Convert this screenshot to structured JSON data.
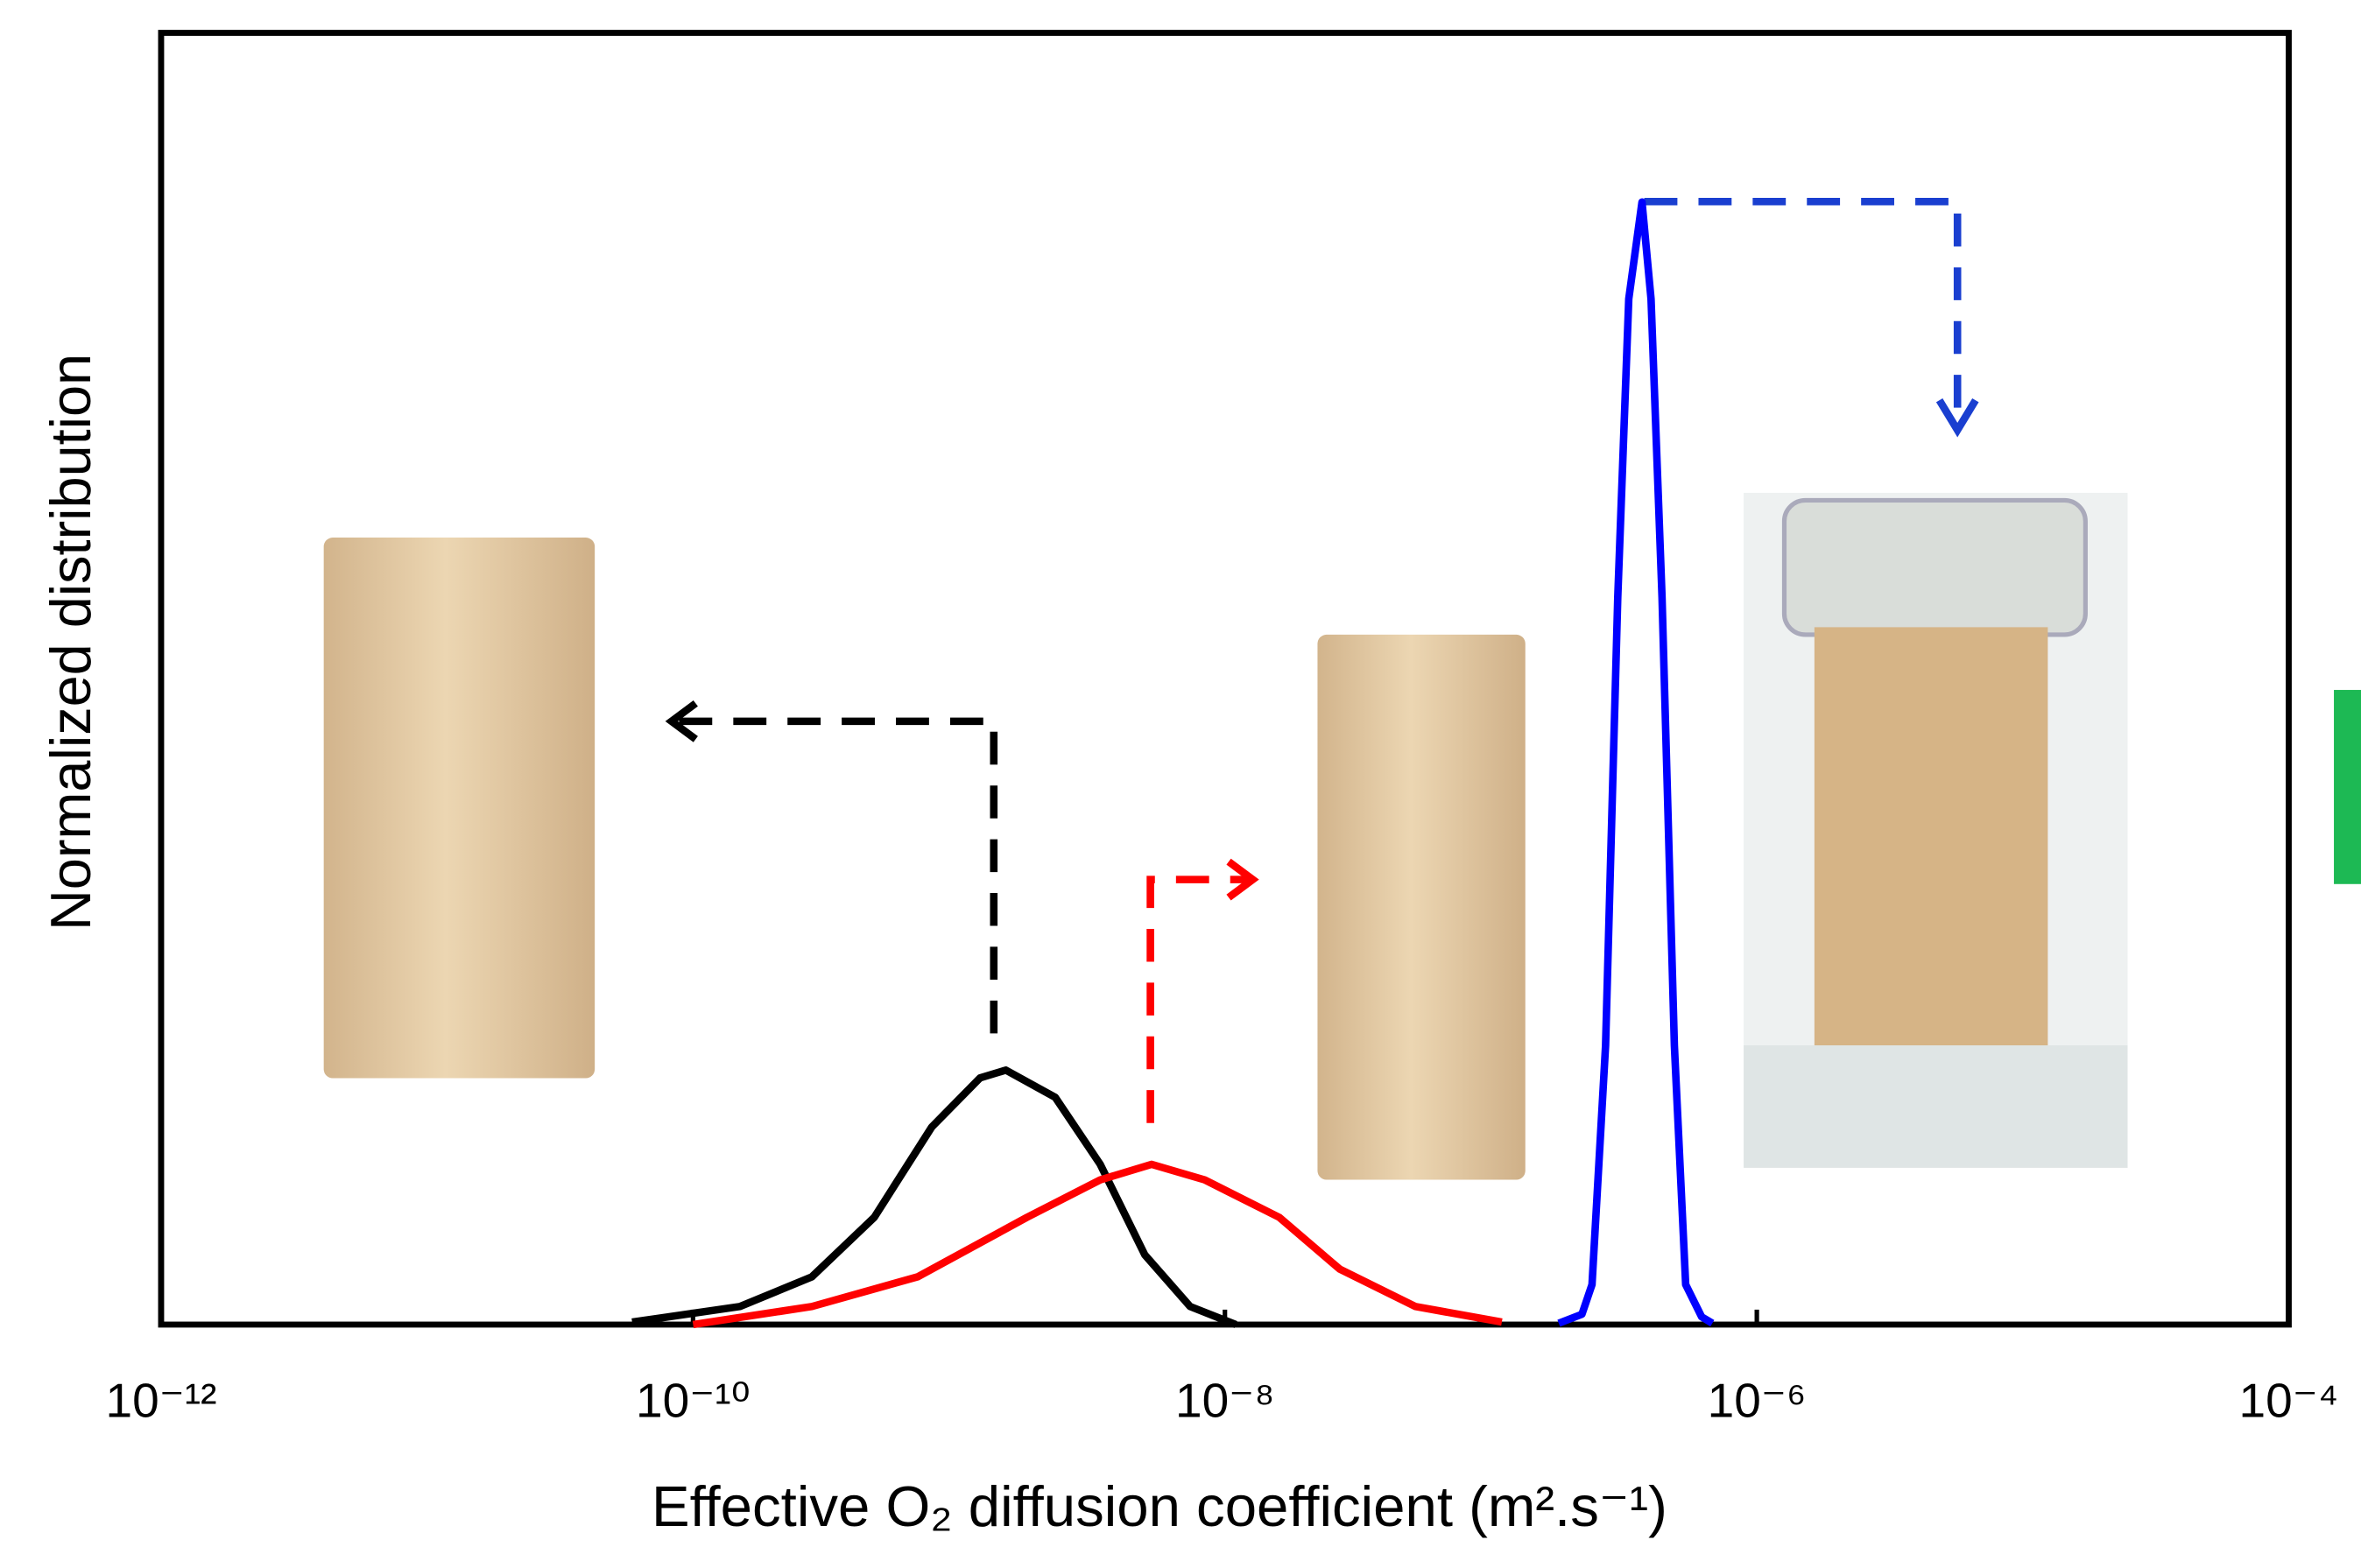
{
  "chart_data": {
    "type": "line",
    "x_label": "Effective O₂ diffusion coefficient (m².s⁻¹)",
    "y_label": "Normalized distribution",
    "xscale": "log",
    "xlim": [
      1e-12,
      0.0001
    ],
    "ylim": [
      0,
      1
    ],
    "xticks": [
      {
        "value": 1e-12,
        "label": "10⁻¹²"
      },
      {
        "value": 1e-10,
        "label": "10⁻¹⁰"
      },
      {
        "value": 1e-08,
        "label": "10⁻⁸"
      },
      {
        "value": 1e-06,
        "label": "10⁻⁶"
      },
      {
        "value": 0.0001,
        "label": "10⁻⁴"
      }
    ],
    "series": [
      {
        "color": "#000000",
        "x": [
          5.9e-11,
          1.5e-10,
          2.8e-10,
          4.8e-10,
          7.9e-10,
          1.2e-09,
          1.5e-09,
          2.3e-09,
          3.4e-09,
          5e-09,
          7.4e-09,
          1.1e-08
        ],
        "values": [
          0.002,
          0.014,
          0.037,
          0.083,
          0.153,
          0.191,
          0.197,
          0.176,
          0.124,
          0.054,
          0.014,
          0
        ]
      },
      {
        "color": "#ff0000",
        "x": [
          1e-10,
          2.8e-10,
          7e-10,
          1.8e-09,
          3.4e-09,
          5.3e-09,
          8.4e-09,
          1.6e-08,
          2.7e-08,
          5.2e-08,
          1.1e-07
        ],
        "values": [
          0,
          0.014,
          0.037,
          0.083,
          0.112,
          0.124,
          0.112,
          0.083,
          0.043,
          0.014,
          0.002
        ]
      },
      {
        "color": "#0000ff",
        "x": [
          1.8e-07,
          2.2e-07,
          2.4e-07,
          2.7e-07,
          3e-07,
          3.3e-07,
          3.7e-07,
          4e-07,
          4.4e-07,
          4.9e-07,
          5.4e-07,
          6.2e-07,
          6.8e-07
        ],
        "values": [
          0.001,
          0.008,
          0.031,
          0.216,
          0.563,
          0.794,
          0.869,
          0.794,
          0.563,
          0.216,
          0.031,
          0.006,
          0.001
        ]
      }
    ]
  }
}
